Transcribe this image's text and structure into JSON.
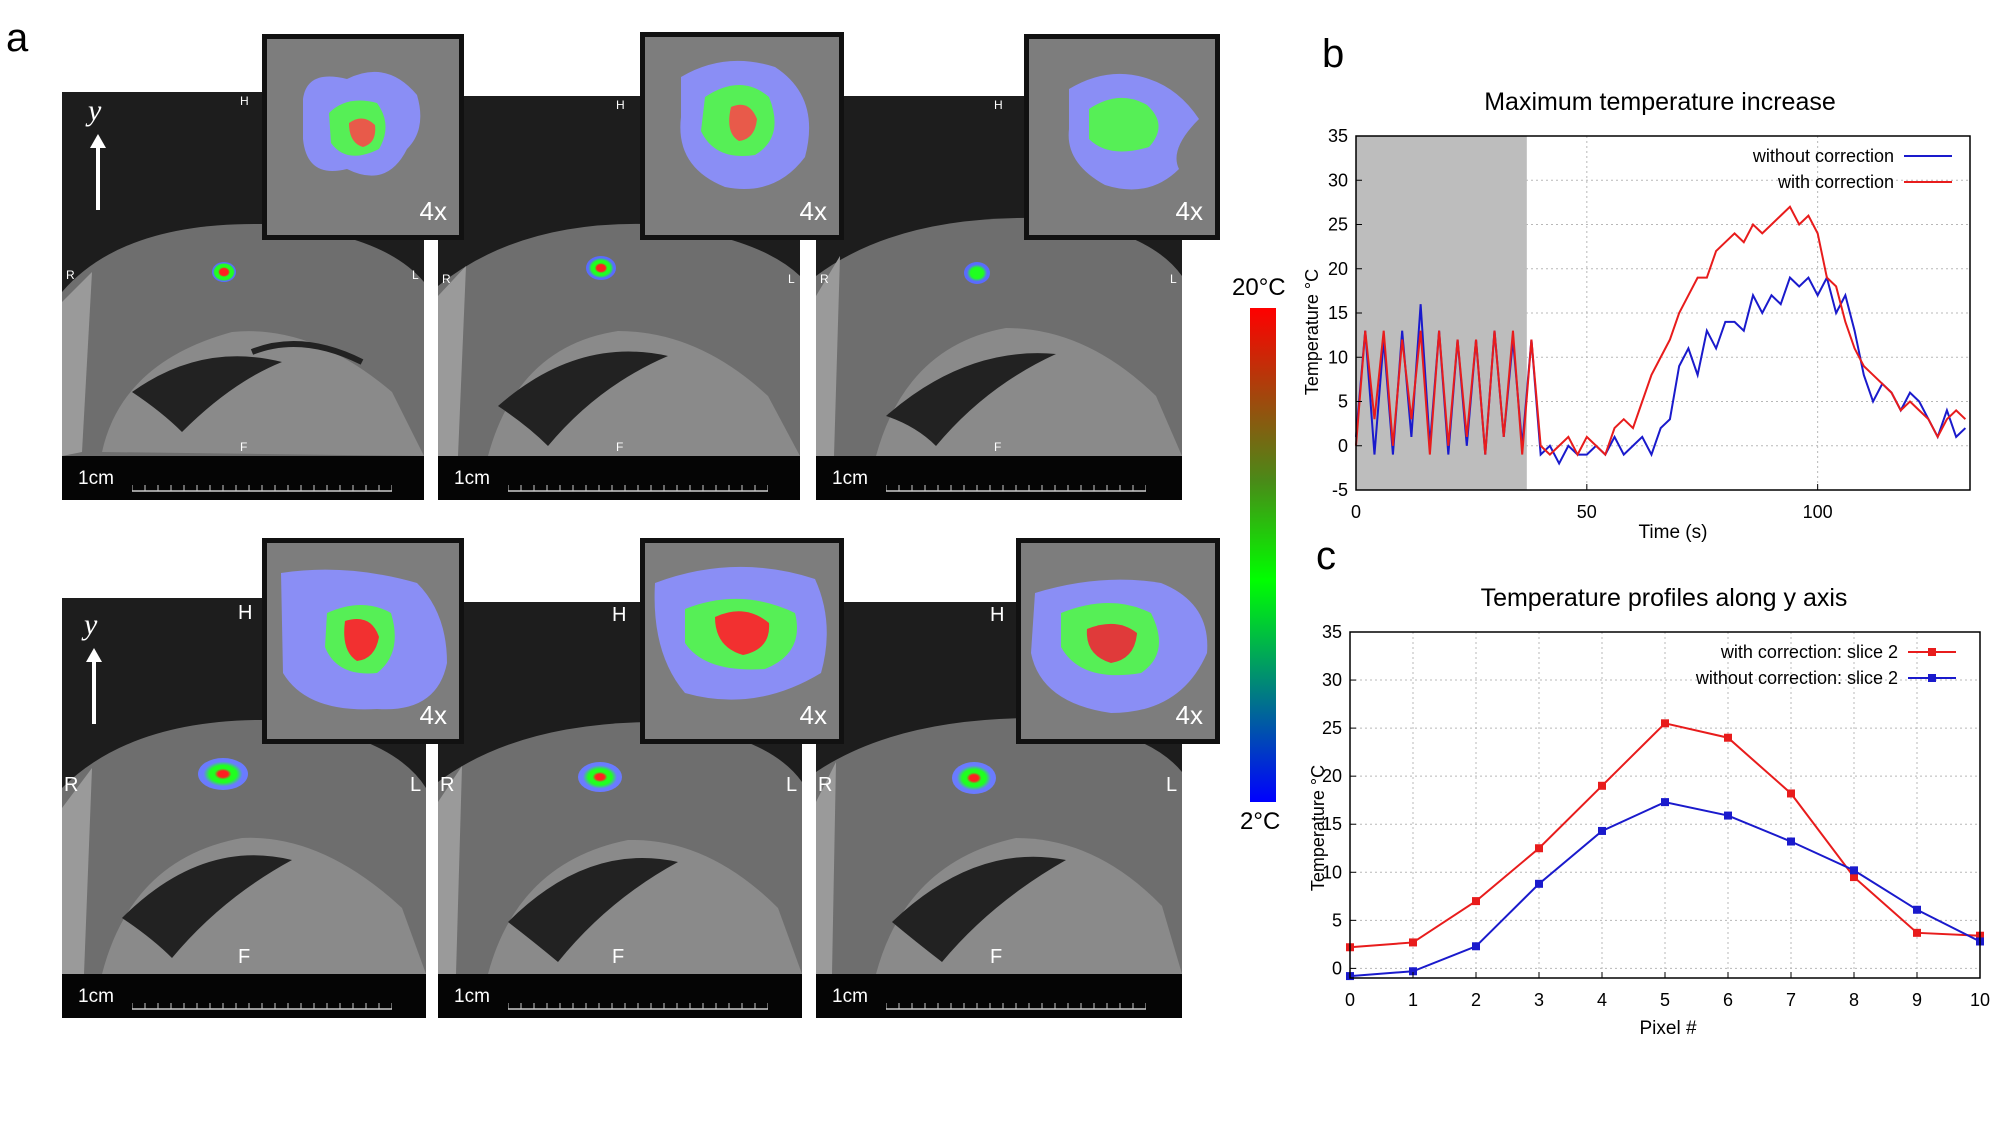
{
  "panels": {
    "a": "a",
    "b": "b",
    "c": "c"
  },
  "mri": {
    "scale_label": "1cm",
    "zoom_label": "4x",
    "axis_symbol": "y⃗",
    "orientation": {
      "head": "H",
      "foot": "F",
      "right": "R",
      "left": "L"
    }
  },
  "colorbar": {
    "max_label": "20°C",
    "min_label": "2°C"
  },
  "colors": {
    "without_correction": "#1a1acc",
    "with_correction": "#e81c1c",
    "grid": "#bbbbbb",
    "stim_shade": "#bdbdbd"
  },
  "chart_data": [
    {
      "type": "line",
      "title": "Maximum temperature increase",
      "xlabel": "Time (s)",
      "ylabel": "Temperature °C",
      "xlim": [
        0,
        133
      ],
      "ylim": [
        -5,
        35
      ],
      "xticks": [
        0,
        50,
        100
      ],
      "yticks": [
        -5,
        0,
        5,
        10,
        15,
        20,
        25,
        30,
        35
      ],
      "shaded_region": [
        0,
        37
      ],
      "legend_position": "top-right",
      "series": [
        {
          "name": "without correction",
          "color": "#1a1acc",
          "x": [
            0,
            2,
            4,
            6,
            8,
            10,
            12,
            14,
            16,
            18,
            20,
            22,
            24,
            26,
            28,
            30,
            32,
            34,
            36,
            38,
            40,
            42,
            44,
            46,
            48,
            50,
            52,
            54,
            56,
            58,
            60,
            62,
            64,
            66,
            68,
            70,
            72,
            74,
            76,
            78,
            80,
            82,
            84,
            86,
            88,
            90,
            92,
            94,
            96,
            98,
            100,
            102,
            104,
            106,
            108,
            110,
            112,
            114,
            116,
            118,
            120,
            122,
            124,
            126,
            128,
            130,
            132
          ],
          "values": [
            1,
            13,
            -1,
            12,
            -1,
            13,
            1,
            16,
            0,
            13,
            -1,
            12,
            0,
            12,
            -1,
            13,
            1,
            12,
            0,
            12,
            -1,
            0,
            -2,
            0,
            -1,
            -1,
            0,
            -1,
            1,
            -1,
            0,
            1,
            -1,
            2,
            3,
            9,
            11,
            8,
            13,
            11,
            14,
            14,
            13,
            17,
            15,
            17,
            16,
            19,
            18,
            19,
            17,
            19,
            15,
            17,
            13,
            8,
            5,
            7,
            6,
            4,
            6,
            5,
            3,
            1,
            4,
            1,
            2
          ]
        },
        {
          "name": "with correction",
          "color": "#e81c1c",
          "x": [
            0,
            2,
            4,
            6,
            8,
            10,
            12,
            14,
            16,
            18,
            20,
            22,
            24,
            26,
            28,
            30,
            32,
            34,
            36,
            38,
            40,
            42,
            44,
            46,
            48,
            50,
            52,
            54,
            56,
            58,
            60,
            62,
            64,
            66,
            68,
            70,
            72,
            74,
            76,
            78,
            80,
            82,
            84,
            86,
            88,
            90,
            92,
            94,
            96,
            98,
            100,
            102,
            104,
            106,
            108,
            110,
            112,
            114,
            116,
            118,
            120,
            122,
            124,
            126,
            128,
            130,
            132
          ],
          "values": [
            0,
            13,
            3,
            13,
            0,
            12,
            3,
            13,
            -1,
            13,
            0,
            12,
            1,
            12,
            -1,
            13,
            1,
            13,
            -1,
            12,
            0,
            -1,
            0,
            1,
            -1,
            1,
            0,
            -1,
            2,
            3,
            2,
            5,
            8,
            10,
            12,
            15,
            17,
            19,
            19,
            22,
            23,
            24,
            23,
            25,
            24,
            25,
            26,
            27,
            25,
            26,
            24,
            19,
            18,
            14,
            11,
            9,
            8,
            7,
            6,
            4,
            5,
            4,
            3,
            1,
            3,
            4,
            3
          ]
        }
      ]
    },
    {
      "type": "line",
      "title": "Temperature profiles along y axis",
      "xlabel": "Pixel #",
      "ylabel": "Temperature °C",
      "xlim": [
        0,
        10
      ],
      "ylim": [
        -1,
        35
      ],
      "xticks": [
        0,
        1,
        2,
        3,
        4,
        5,
        6,
        7,
        8,
        9,
        10
      ],
      "yticks": [
        0,
        5,
        10,
        15,
        20,
        25,
        30,
        35
      ],
      "legend_position": "top-right",
      "series": [
        {
          "name": "with correction: slice 2",
          "color": "#e81c1c",
          "x": [
            0,
            1,
            2,
            3,
            4,
            5,
            6,
            7,
            8,
            9,
            10
          ],
          "values": [
            2.2,
            2.7,
            7.0,
            12.5,
            19.0,
            25.5,
            24.0,
            18.2,
            9.5,
            3.7,
            3.4
          ]
        },
        {
          "name": "without correction: slice 2",
          "color": "#1a1acc",
          "x": [
            0,
            1,
            2,
            3,
            4,
            5,
            6,
            7,
            8,
            9,
            10
          ],
          "values": [
            -0.8,
            -0.3,
            2.3,
            8.8,
            14.3,
            17.3,
            15.9,
            13.2,
            10.2,
            6.1,
            2.8
          ]
        }
      ]
    }
  ]
}
